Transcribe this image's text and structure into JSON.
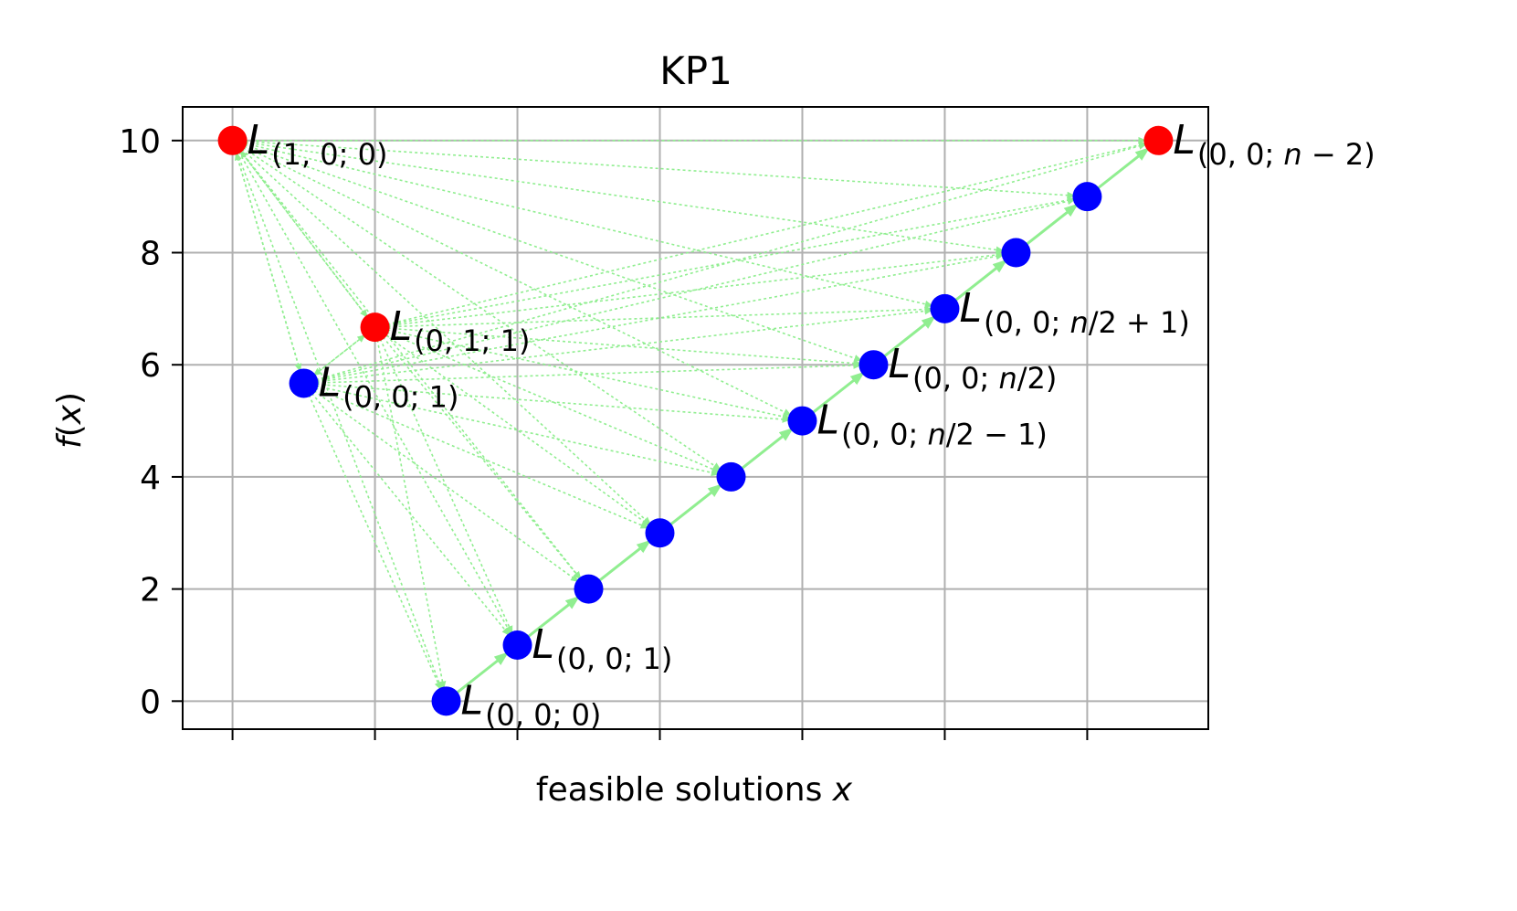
{
  "chart_data": {
    "type": "scatter",
    "title": "KP1",
    "xlabel": "feasible solutions x",
    "xlabel_parts": [
      "feasible solutions ",
      "x"
    ],
    "ylabel": "f(x)",
    "ylabel_parts": [
      "f",
      "(",
      "x",
      ")"
    ],
    "xlim": [
      -0.35,
      6.85
    ],
    "ylim": [
      -0.5,
      10.6
    ],
    "xticks": [
      0,
      1,
      2,
      3,
      4,
      5,
      6
    ],
    "yticks": [
      0,
      2,
      4,
      6,
      8,
      10
    ],
    "grid": true,
    "colors": {
      "local": "#0000ff",
      "global": "#ff0000",
      "edge": "#90ee90",
      "grid": "#b0b0b0"
    },
    "points": [
      {
        "id": "p0",
        "x": 1.5,
        "y": 0,
        "color": "blue",
        "label": {
          "base": "L",
          "sub": "(0, 0; 0)"
        }
      },
      {
        "id": "p1",
        "x": 2.0,
        "y": 1,
        "color": "blue",
        "label": {
          "base": "L",
          "sub": "(0, 0; 1)"
        }
      },
      {
        "id": "p2",
        "x": 2.5,
        "y": 2,
        "color": "blue"
      },
      {
        "id": "p3",
        "x": 3.0,
        "y": 3,
        "color": "blue"
      },
      {
        "id": "p4",
        "x": 3.5,
        "y": 4,
        "color": "blue"
      },
      {
        "id": "p5",
        "x": 4.0,
        "y": 5,
        "color": "blue",
        "label": {
          "base": "L",
          "sub": "(0, 0; n/2 − 1)"
        }
      },
      {
        "id": "p6",
        "x": 4.5,
        "y": 6,
        "color": "blue",
        "label": {
          "base": "L",
          "sub": "(0, 0; n/2)"
        }
      },
      {
        "id": "p7",
        "x": 5.0,
        "y": 7,
        "color": "blue",
        "label": {
          "base": "L",
          "sub": "(0, 0; n/2 + 1)"
        }
      },
      {
        "id": "p8",
        "x": 5.5,
        "y": 8,
        "color": "blue"
      },
      {
        "id": "p9",
        "x": 6.0,
        "y": 9,
        "color": "blue"
      },
      {
        "id": "p10",
        "x": 6.5,
        "y": 10,
        "color": "red",
        "label": {
          "base": "L",
          "sub": "(0, 0; n − 2)"
        }
      },
      {
        "id": "p11",
        "x": 0.5,
        "y": 5.67,
        "color": "blue",
        "label": {
          "base": "L",
          "sub": "(0, 0; 1)"
        }
      },
      {
        "id": "p12",
        "x": 1.0,
        "y": 6.67,
        "color": "red",
        "label": {
          "base": "L",
          "sub": "(0, 1; 1)"
        }
      },
      {
        "id": "p13",
        "x": 0.0,
        "y": 10,
        "color": "red",
        "label": {
          "base": "L",
          "sub": "(1, 0; 0)"
        }
      }
    ],
    "edges_chain": [
      [
        0,
        1
      ],
      [
        1,
        2
      ],
      [
        2,
        3
      ],
      [
        3,
        4
      ],
      [
        4,
        5
      ],
      [
        5,
        6
      ],
      [
        6,
        7
      ],
      [
        7,
        8
      ],
      [
        8,
        9
      ],
      [
        9,
        10
      ]
    ],
    "edges_dotted_from": [
      11,
      12,
      13
    ],
    "edges_dotted_to": [
      0,
      1,
      2,
      3,
      4,
      5,
      6,
      7,
      8,
      9,
      10,
      11,
      12,
      13
    ]
  }
}
